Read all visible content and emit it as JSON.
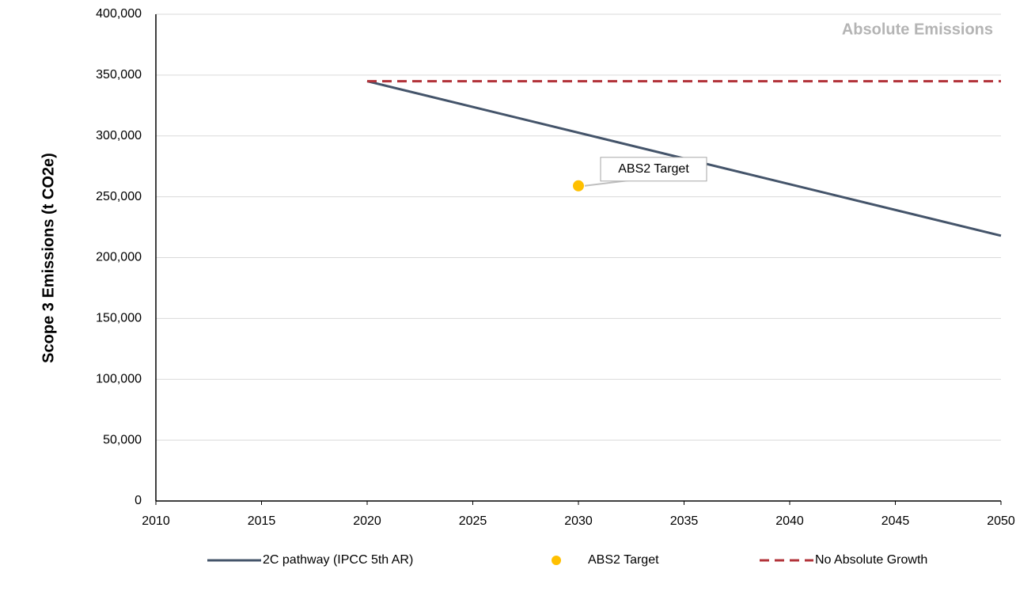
{
  "chart_data": {
    "type": "line",
    "title": "Absolute Emissions",
    "ylabel": "Scope 3 Emissions (t CO2e)",
    "xlim": [
      2010,
      2050
    ],
    "xticks": [
      2010,
      2015,
      2020,
      2025,
      2030,
      2035,
      2040,
      2045,
      2050
    ],
    "ylim": [
      0,
      400000
    ],
    "yticks": [
      0,
      {
        "value": 50000,
        "label": "50,000"
      },
      {
        "value": 100000,
        "label": "100,000"
      },
      {
        "value": 150000,
        "label": "150,000"
      },
      {
        "value": 200000,
        "label": "200,000"
      },
      {
        "value": 250000,
        "label": "250,000"
      },
      {
        "value": 300000,
        "label": "300,000"
      },
      {
        "value": 350000,
        "label": "350,000"
      },
      {
        "value": 400000,
        "label": "400,000"
      }
    ],
    "grid": true,
    "legend": "bottom",
    "series": [
      {
        "name": "2C pathway (IPCC 5th AR)",
        "color": "#44546a",
        "line_style": "solid",
        "marker": false,
        "x": [
          2020,
          2050
        ],
        "values": [
          345000,
          218000
        ]
      },
      {
        "name": "ABS2 Target",
        "color": "#ffc000",
        "line_style": "none",
        "marker": true,
        "x": [
          2030
        ],
        "values": [
          259000
        ]
      },
      {
        "name": "No Absolute Growth",
        "color": "#b2333a",
        "line_style": "dashed",
        "marker": false,
        "x": [
          2020,
          2050
        ],
        "values": [
          345000,
          345000
        ]
      }
    ],
    "annotations": [
      {
        "text": "ABS2 Target"
      }
    ]
  }
}
